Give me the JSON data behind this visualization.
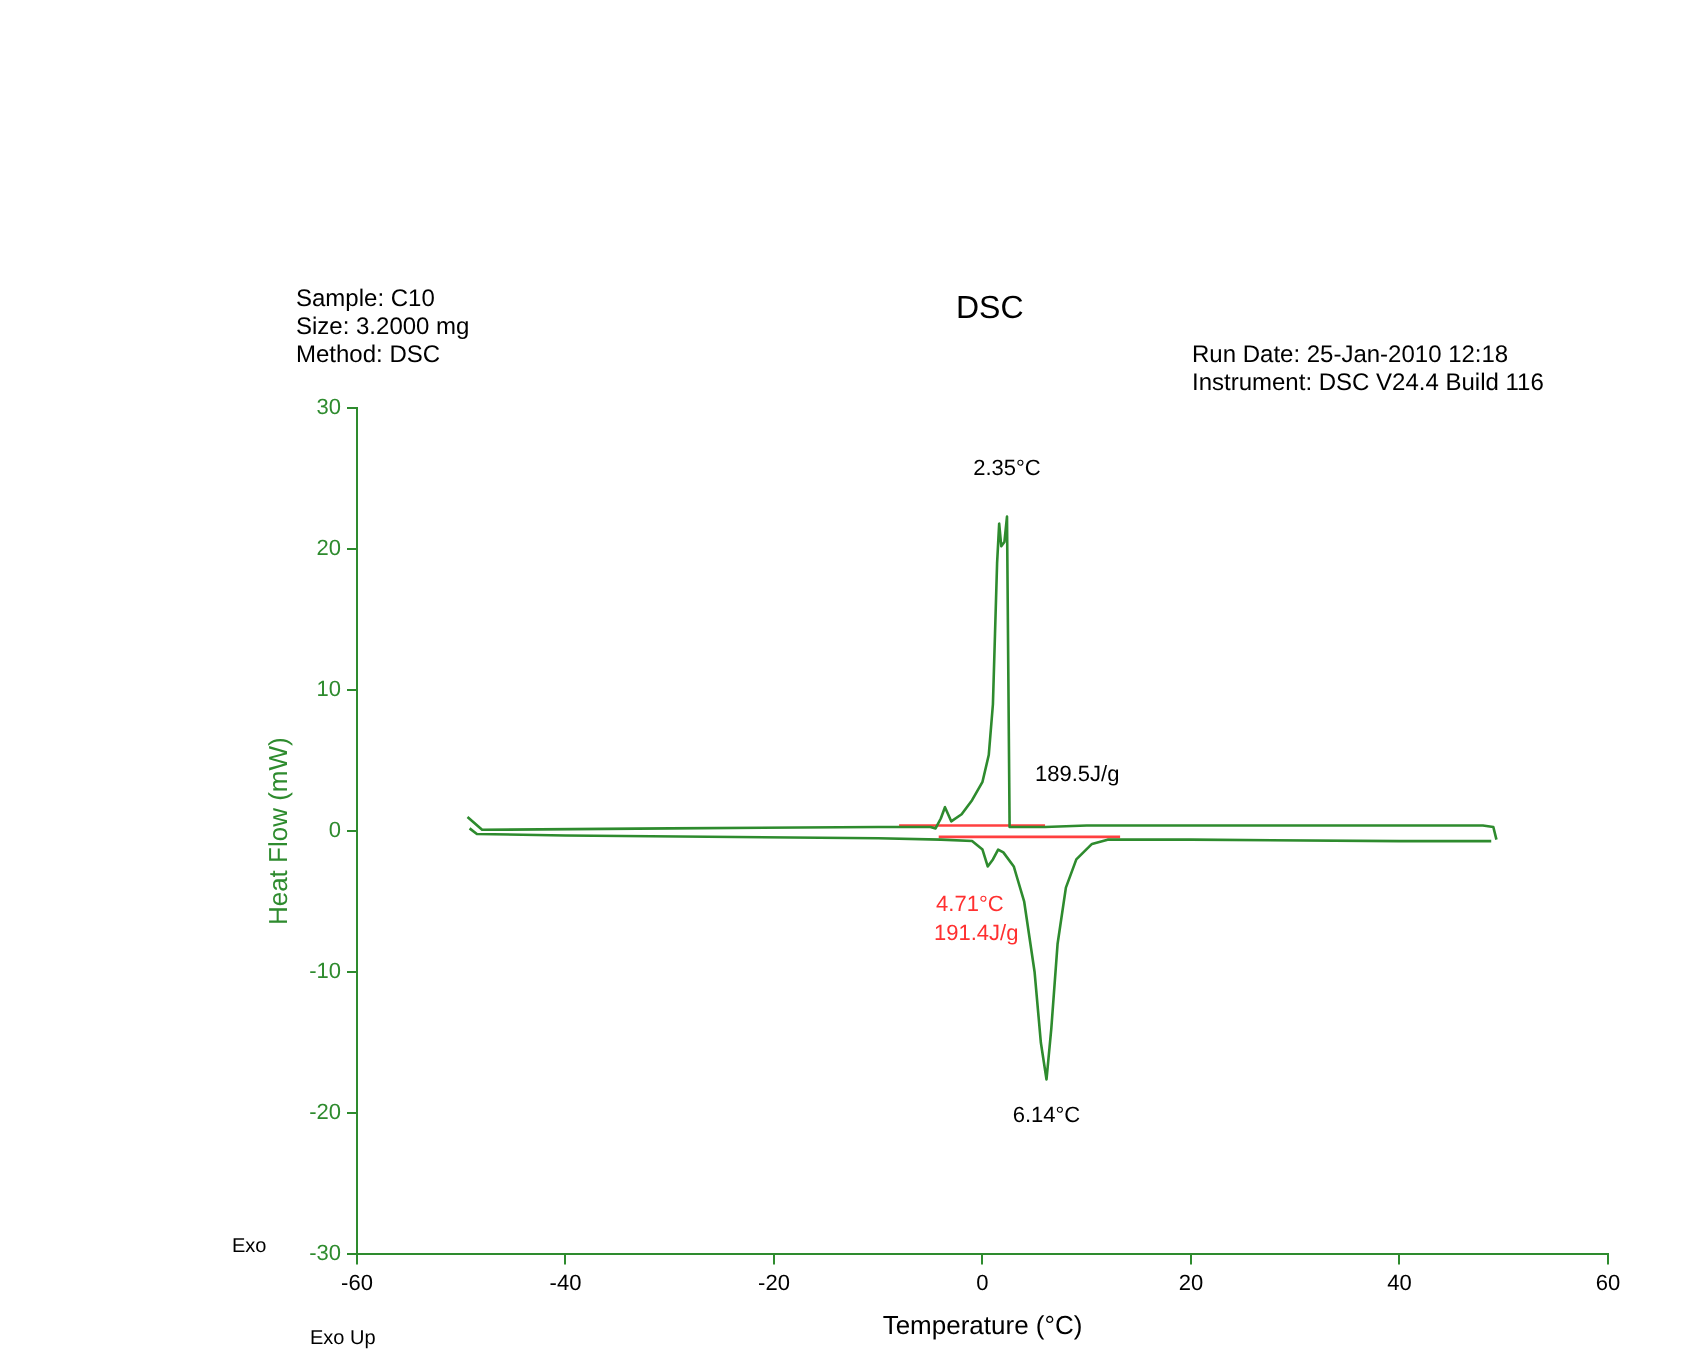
{
  "chart_data": {
    "type": "line",
    "title": "DSC",
    "xlabel": "Temperature (°C)",
    "ylabel": "Heat Flow (mW)",
    "xlim": [
      -60,
      60
    ],
    "xticks": [
      -60,
      -40,
      -20,
      0,
      20,
      40,
      60
    ],
    "ylim": [
      -30,
      30
    ],
    "yticks": [
      -30,
      -20,
      -10,
      0,
      10,
      20,
      30
    ],
    "grid": false,
    "legend": false,
    "marker": "none",
    "line_style": "solid",
    "series": [
      {
        "color": "#2e8b2e",
        "x": [
          49.3,
          49,
          48,
          30,
          10,
          6,
          2.6,
          2.35,
          2.1,
          1.8,
          1.6,
          1.4,
          1.2,
          1.0,
          0.6,
          0,
          -1,
          -2,
          -3,
          -3.6,
          -4,
          -4.5,
          -5,
          -10,
          -30,
          -48,
          -49.4
        ],
        "values": [
          -0.6,
          0.3,
          0.4,
          0.4,
          0.4,
          0.3,
          0.3,
          22.3,
          20.5,
          20.2,
          21.8,
          19,
          14,
          9,
          5.4,
          3.5,
          2.2,
          1.2,
          0.7,
          1.7,
          0.9,
          0.2,
          0.3,
          0.3,
          0.2,
          0.1,
          1.0
        ]
      },
      {
        "color": "#2e8b2e",
        "x": [
          -49.2,
          -48.5,
          -40,
          -10,
          -4,
          -1,
          0,
          0.5,
          1,
          1.5,
          2,
          3,
          4,
          5,
          5.6,
          6.14,
          6.6,
          7.2,
          8,
          9,
          10.5,
          12,
          20,
          40,
          48.8
        ],
        "values": [
          0.2,
          -0.2,
          -0.3,
          -0.5,
          -0.6,
          -0.7,
          -1.3,
          -2.5,
          -2.0,
          -1.3,
          -1.5,
          -2.5,
          -5,
          -10,
          -15,
          -17.6,
          -14,
          -8,
          -4,
          -2,
          -0.9,
          -0.6,
          -0.6,
          -0.7,
          -0.7
        ]
      },
      {
        "color": "#ff4040",
        "x": [
          -8,
          6
        ],
        "values": [
          0.4,
          0.4
        ]
      },
      {
        "color": "#ff4040",
        "x": [
          -4.2,
          13.2
        ],
        "values": [
          -0.4,
          -0.4
        ]
      }
    ],
    "annotations": [
      "Sample: C10",
      "Size: 3.2000 mg",
      "Method: DSC",
      "Run Date: 25-Jan-2010 12:18",
      "Instrument: DSC V24.4 Build 116",
      "Exo",
      "Exo Up",
      "191.4J/g",
      {
        "text": "2.35°C",
        "x": 2.35,
        "y": 22.3
      },
      {
        "text": "189.5J/g",
        "x": 2.35,
        "y": 5.4
      },
      {
        "text": "4.71°C",
        "x": 4.71,
        "y": -0.4
      },
      {
        "text": "6.14°C",
        "x": 6.14,
        "y": -17.6
      }
    ]
  }
}
